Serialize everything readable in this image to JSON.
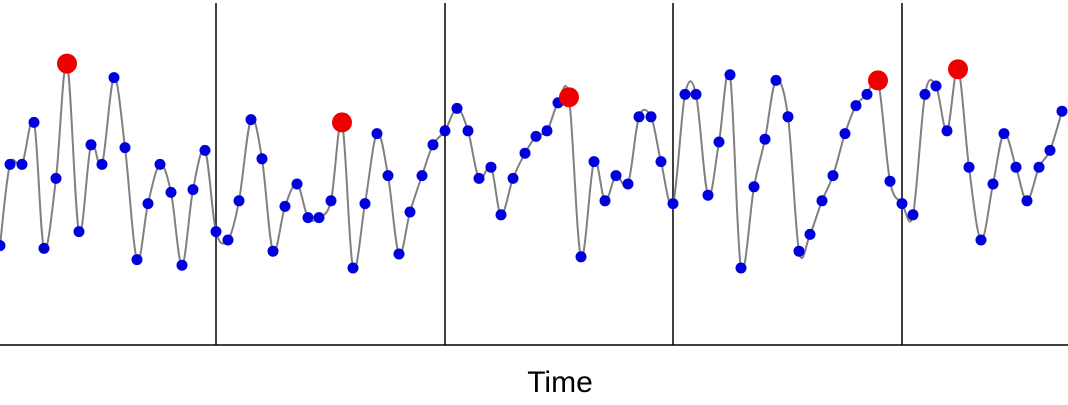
{
  "chart_data": {
    "type": "line",
    "title": "",
    "xlabel": "Time",
    "ylabel": "",
    "xlim": [
      0,
      1068
    ],
    "ylim": [
      0,
      100
    ],
    "grid": false,
    "segment_boundaries": [
      216,
      445,
      673,
      902
    ],
    "colors": {
      "line": "#808080",
      "sample_point": "#0000dd",
      "peak_point": "#ee0000",
      "axis": "#000000"
    },
    "series": [
      {
        "role": "signal",
        "points": [
          [
            0,
            23
          ],
          [
            10,
            52
          ],
          [
            22,
            52
          ],
          [
            34,
            67
          ],
          [
            44,
            22
          ],
          [
            56,
            47
          ],
          [
            67,
            88
          ],
          [
            79,
            28
          ],
          [
            91,
            59
          ],
          [
            102,
            52
          ],
          [
            114,
            83
          ],
          [
            125,
            58
          ],
          [
            137,
            18
          ],
          [
            148,
            38
          ],
          [
            160,
            52
          ],
          [
            171,
            42
          ],
          [
            182,
            16
          ],
          [
            193,
            43
          ],
          [
            205,
            57
          ],
          [
            216,
            28
          ],
          [
            228,
            25
          ],
          [
            239,
            39
          ],
          [
            251,
            68
          ],
          [
            262,
            54
          ],
          [
            273,
            21
          ],
          [
            285,
            37
          ],
          [
            297,
            45
          ],
          [
            308,
            33
          ],
          [
            319,
            33
          ],
          [
            331,
            39
          ],
          [
            342,
            67
          ],
          [
            353,
            15
          ],
          [
            365,
            38
          ],
          [
            377,
            63
          ],
          [
            388,
            48
          ],
          [
            399,
            20
          ],
          [
            410,
            35
          ],
          [
            422,
            48
          ],
          [
            433,
            59
          ],
          [
            445,
            64
          ],
          [
            457,
            72
          ],
          [
            468,
            64
          ],
          [
            479,
            47
          ],
          [
            491,
            51
          ],
          [
            501,
            34
          ],
          [
            513,
            47
          ],
          [
            525,
            56
          ],
          [
            536,
            62
          ],
          [
            547,
            64
          ],
          [
            558,
            74
          ],
          [
            569,
            76
          ],
          [
            581,
            19
          ],
          [
            594,
            53
          ],
          [
            605,
            39
          ],
          [
            616,
            48
          ],
          [
            628,
            45
          ],
          [
            639,
            69
          ],
          [
            651,
            69
          ],
          [
            661,
            53
          ],
          [
            673,
            38
          ],
          [
            685,
            77
          ],
          [
            696,
            77
          ],
          [
            708,
            41
          ],
          [
            719,
            60
          ],
          [
            730,
            84
          ],
          [
            741,
            15
          ],
          [
            754,
            44
          ],
          [
            765,
            61
          ],
          [
            776,
            82
          ],
          [
            788,
            69
          ],
          [
            799,
            21
          ],
          [
            810,
            27
          ],
          [
            822,
            39
          ],
          [
            833,
            48
          ],
          [
            845,
            63
          ],
          [
            856,
            73
          ],
          [
            867,
            77
          ],
          [
            878,
            82
          ],
          [
            890,
            46
          ],
          [
            902,
            38
          ],
          [
            913,
            34
          ],
          [
            925,
            77
          ],
          [
            936,
            80
          ],
          [
            947,
            64
          ],
          [
            958,
            86
          ],
          [
            969,
            51
          ],
          [
            981,
            25
          ],
          [
            993,
            45
          ],
          [
            1004,
            63
          ],
          [
            1016,
            51
          ],
          [
            1027,
            39
          ],
          [
            1039,
            51
          ],
          [
            1050,
            57
          ],
          [
            1062,
            71
          ]
        ]
      },
      {
        "role": "peaks",
        "points": [
          [
            67,
            88
          ],
          [
            342,
            67
          ],
          [
            569,
            76
          ],
          [
            878,
            82
          ],
          [
            958,
            86
          ]
        ]
      }
    ]
  }
}
